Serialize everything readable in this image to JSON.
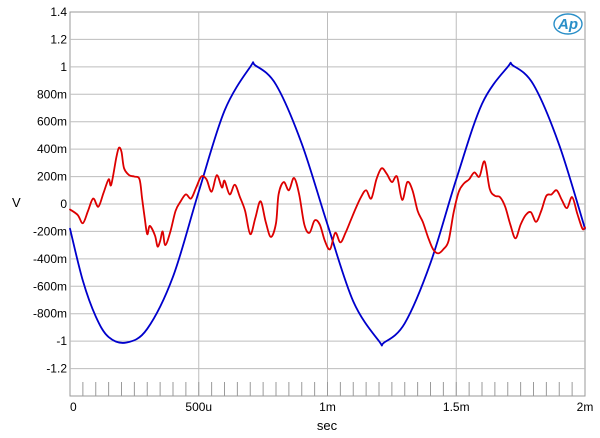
{
  "chart_data": {
    "type": "line",
    "title": "",
    "xlabel": "sec",
    "ylabel": "V",
    "xlim": [
      0,
      0.002
    ],
    "ylim": [
      -1.4,
      1.4
    ],
    "grid": true,
    "x_ticks": [
      {
        "value": 0,
        "label": "0"
      },
      {
        "value": 0.0005,
        "label": "500u"
      },
      {
        "value": 0.001,
        "label": "1m"
      },
      {
        "value": 0.0015,
        "label": "1.5m"
      },
      {
        "value": 0.002,
        "label": "2m"
      }
    ],
    "y_ticks": [
      {
        "value": 1.4,
        "label": "1.4"
      },
      {
        "value": 1.2,
        "label": "1.2"
      },
      {
        "value": 1.0,
        "label": "1"
      },
      {
        "value": 0.8,
        "label": "800m"
      },
      {
        "value": 0.6,
        "label": "600m"
      },
      {
        "value": 0.4,
        "label": "400m"
      },
      {
        "value": 0.2,
        "label": "200m"
      },
      {
        "value": 0,
        "label": "0"
      },
      {
        "value": -0.2,
        "label": "-200m"
      },
      {
        "value": -0.4,
        "label": "-400m"
      },
      {
        "value": -0.6,
        "label": "-600m"
      },
      {
        "value": -0.8,
        "label": "-800m"
      },
      {
        "value": -1.0,
        "label": "-1"
      },
      {
        "value": -1.2,
        "label": "-1.2"
      }
    ],
    "series": [
      {
        "color": "#0000cc",
        "points": [
          [
            0.0,
            -0.18
          ],
          [
            5e-05,
            -0.56
          ],
          [
            0.0001,
            -0.82
          ],
          [
            0.00015,
            -0.97
          ],
          [
            0.00022,
            -1.01
          ],
          [
            0.0003,
            -0.91
          ],
          [
            0.0004,
            -0.53
          ],
          [
            0.0005,
            0.09
          ],
          [
            0.0006,
            0.68
          ],
          [
            0.0007,
            1.0
          ],
          [
            0.00072,
            1.01
          ],
          [
            0.0008,
            0.87
          ],
          [
            0.0009,
            0.44
          ],
          [
            0.001,
            -0.15
          ],
          [
            0.0011,
            -0.71
          ],
          [
            0.0012,
            -1.0
          ],
          [
            0.00122,
            -1.01
          ],
          [
            0.0013,
            -0.87
          ],
          [
            0.0014,
            -0.43
          ],
          [
            0.0015,
            0.18
          ],
          [
            0.0016,
            0.73
          ],
          [
            0.0017,
            1.0
          ],
          [
            0.00172,
            1.01
          ],
          [
            0.0018,
            0.87
          ],
          [
            0.0019,
            0.43
          ],
          [
            0.002,
            -0.18
          ]
        ]
      },
      {
        "color": "#dd0000",
        "points": [
          [
            0.0,
            -0.04
          ],
          [
            3e-05,
            -0.08
          ],
          [
            5e-05,
            -0.14
          ],
          [
            7e-05,
            -0.05
          ],
          [
            9e-05,
            0.04
          ],
          [
            0.00011,
            -0.02
          ],
          [
            0.00013,
            0.08
          ],
          [
            0.00015,
            0.18
          ],
          [
            0.00016,
            0.14
          ],
          [
            0.00018,
            0.34
          ],
          [
            0.00019,
            0.41
          ],
          [
            0.0002,
            0.38
          ],
          [
            0.00021,
            0.26
          ],
          [
            0.00023,
            0.21
          ],
          [
            0.00025,
            0.2
          ],
          [
            0.00027,
            0.18
          ],
          [
            0.00028,
            0.04
          ],
          [
            0.00029,
            -0.1
          ],
          [
            0.0003,
            -0.22
          ],
          [
            0.00031,
            -0.16
          ],
          [
            0.00033,
            -0.23
          ],
          [
            0.00034,
            -0.31
          ],
          [
            0.00035,
            -0.27
          ],
          [
            0.00036,
            -0.2
          ],
          [
            0.00037,
            -0.3
          ],
          [
            0.00039,
            -0.2
          ],
          [
            0.00041,
            -0.05
          ],
          [
            0.00043,
            0.02
          ],
          [
            0.00045,
            0.07
          ],
          [
            0.00047,
            0.04
          ],
          [
            0.00049,
            0.12
          ],
          [
            0.00051,
            0.2
          ],
          [
            0.00053,
            0.18
          ],
          [
            0.00055,
            0.09
          ],
          [
            0.00057,
            0.21
          ],
          [
            0.00059,
            0.12
          ],
          [
            0.0006,
            0.17
          ],
          [
            0.00062,
            0.07
          ],
          [
            0.00064,
            0.14
          ],
          [
            0.00066,
            0.05
          ],
          [
            0.00068,
            -0.05
          ],
          [
            0.0007,
            -0.22
          ],
          [
            0.00072,
            -0.1
          ],
          [
            0.00074,
            0.02
          ],
          [
            0.00076,
            -0.13
          ],
          [
            0.00078,
            -0.24
          ],
          [
            0.0008,
            -0.14
          ],
          [
            0.00081,
            0.07
          ],
          [
            0.00083,
            0.16
          ],
          [
            0.00085,
            0.1
          ],
          [
            0.00087,
            0.19
          ],
          [
            0.00089,
            0.07
          ],
          [
            0.00091,
            -0.15
          ],
          [
            0.00093,
            -0.21
          ],
          [
            0.00095,
            -0.12
          ],
          [
            0.00097,
            -0.15
          ],
          [
            0.00099,
            -0.27
          ],
          [
            0.00101,
            -0.33
          ],
          [
            0.00103,
            -0.21
          ],
          [
            0.00105,
            -0.28
          ],
          [
            0.00107,
            -0.21
          ],
          [
            0.00109,
            -0.12
          ],
          [
            0.00111,
            -0.03
          ],
          [
            0.00113,
            0.05
          ],
          [
            0.00115,
            0.1
          ],
          [
            0.00117,
            0.04
          ],
          [
            0.00119,
            0.18
          ],
          [
            0.00121,
            0.26
          ],
          [
            0.00123,
            0.22
          ],
          [
            0.00125,
            0.16
          ],
          [
            0.00127,
            0.2
          ],
          [
            0.00129,
            0.03
          ],
          [
            0.00131,
            0.16
          ],
          [
            0.00133,
            0.1
          ],
          [
            0.00135,
            -0.05
          ],
          [
            0.00137,
            -0.13
          ],
          [
            0.00139,
            -0.24
          ],
          [
            0.00141,
            -0.33
          ],
          [
            0.00143,
            -0.36
          ],
          [
            0.00145,
            -0.33
          ],
          [
            0.00147,
            -0.27
          ],
          [
            0.00149,
            -0.06
          ],
          [
            0.00151,
            0.09
          ],
          [
            0.00153,
            0.15
          ],
          [
            0.00155,
            0.18
          ],
          [
            0.00157,
            0.23
          ],
          [
            0.00159,
            0.2
          ],
          [
            0.00161,
            0.31
          ],
          [
            0.00163,
            0.11
          ],
          [
            0.00165,
            0.06
          ],
          [
            0.00167,
            0.05
          ],
          [
            0.00169,
            -0.02
          ],
          [
            0.00171,
            -0.15
          ],
          [
            0.00173,
            -0.25
          ],
          [
            0.00175,
            -0.15
          ],
          [
            0.00177,
            -0.08
          ],
          [
            0.00179,
            -0.06
          ],
          [
            0.00181,
            -0.13
          ],
          [
            0.00183,
            -0.05
          ],
          [
            0.00185,
            0.06
          ],
          [
            0.00187,
            0.07
          ],
          [
            0.00189,
            0.1
          ],
          [
            0.00191,
            0.03
          ],
          [
            0.00193,
            -0.03
          ],
          [
            0.00195,
            0.05
          ],
          [
            0.00197,
            -0.07
          ],
          [
            0.00199,
            -0.18
          ],
          [
            0.002,
            -0.17
          ]
        ]
      }
    ]
  },
  "logo": {
    "text": "Ap",
    "color": "#2a8fc8"
  }
}
